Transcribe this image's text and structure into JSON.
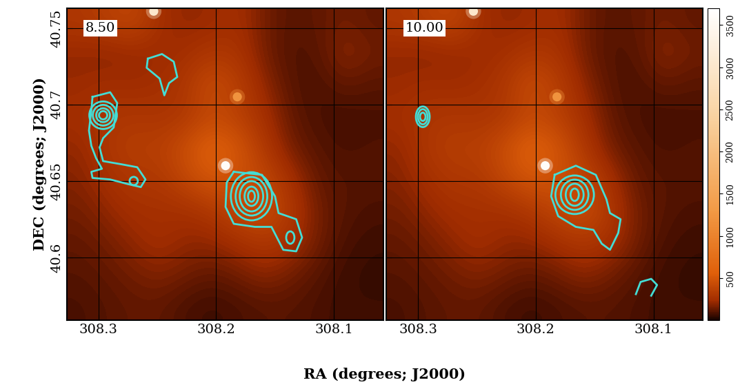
{
  "chart_data": {
    "type": "contour",
    "xlabel": "RA (degrees; J2000)",
    "ylabel": "DEC (degrees; J2000)",
    "xlim": [
      308.327,
      308.058
    ],
    "ylim": [
      40.559,
      40.763
    ],
    "xticks": [
      308.3,
      308.2,
      308.1
    ],
    "yticks": [
      40.6,
      40.65,
      40.7,
      40.75
    ],
    "grid": true,
    "color": "#44ddd5",
    "image": {
      "cells": [
        [
          300,
          350,
          400,
          250,
          200,
          220,
          250,
          150,
          100,
          120,
          150,
          120
        ],
        [
          200,
          180,
          200,
          220,
          250,
          300,
          280,
          150,
          90,
          100,
          200,
          150
        ],
        [
          220,
          250,
          230,
          250,
          300,
          450,
          350,
          200,
          100,
          80,
          120,
          100
        ],
        [
          250,
          280,
          300,
          280,
          300,
          400,
          350,
          250,
          120,
          80,
          70,
          80
        ],
        [
          200,
          300,
          350,
          350,
          450,
          600,
          500,
          300,
          150,
          100,
          80,
          90
        ],
        [
          180,
          250,
          300,
          300,
          400,
          500,
          450,
          400,
          250,
          120,
          100,
          100
        ],
        [
          150,
          200,
          250,
          250,
          250,
          300,
          400,
          450,
          300,
          150,
          100,
          80
        ],
        [
          120,
          150,
          200,
          250,
          200,
          200,
          250,
          300,
          250,
          150,
          80,
          60
        ],
        [
          100,
          120,
          150,
          180,
          150,
          120,
          150,
          200,
          150,
          100,
          60,
          50
        ],
        [
          80,
          100,
          120,
          120,
          80,
          60,
          80,
          100,
          100,
          80,
          60,
          60
        ]
      ],
      "point_sources": [
        {
          "ra": 308.192,
          "dec": 40.66,
          "value": 3600
        },
        {
          "ra": 308.253,
          "dec": 40.761,
          "value": 3000
        },
        {
          "ra": 308.182,
          "dec": 40.705,
          "value": 1200
        }
      ]
    },
    "colorbar": {
      "range": [
        0,
        3700
      ],
      "ticks": [
        500,
        1000,
        1500,
        2000,
        2500,
        3000,
        3500
      ]
    },
    "panels": [
      {
        "label": "8.50",
        "tick_labels": true,
        "polylines": [
          [
            [
              308.258,
              40.73
            ],
            [
              308.246,
              40.733
            ],
            [
              308.236,
              40.728
            ],
            [
              308.233,
              40.718
            ],
            [
              308.24,
              40.714
            ],
            [
              308.244,
              40.706
            ],
            [
              308.248,
              40.717
            ],
            [
              308.259,
              40.724
            ],
            [
              308.258,
              40.73
            ]
          ],
          [
            [
              308.305,
              40.705
            ],
            [
              308.29,
              40.708
            ],
            [
              308.284,
              40.701
            ],
            [
              308.287,
              40.685
            ],
            [
              308.296,
              40.678
            ],
            [
              308.299,
              40.672
            ],
            [
              308.296,
              40.663
            ],
            [
              308.281,
              40.661
            ],
            [
              308.267,
              40.659
            ],
            [
              308.26,
              40.651
            ],
            [
              308.264,
              40.646
            ],
            [
              308.275,
              40.648
            ],
            [
              308.29,
              40.651
            ],
            [
              308.305,
              40.652
            ],
            [
              308.306,
              40.656
            ],
            [
              308.297,
              40.658
            ],
            [
              308.302,
              40.665
            ],
            [
              308.306,
              40.673
            ],
            [
              308.308,
              40.683
            ],
            [
              308.306,
              40.696
            ],
            [
              308.305,
              40.705
            ]
          ],
          [
            [
              308.185,
              40.656
            ],
            [
              308.161,
              40.654
            ],
            [
              308.15,
              40.64
            ],
            [
              308.147,
              40.629
            ],
            [
              308.132,
              40.625
            ],
            [
              308.127,
              40.613
            ],
            [
              308.132,
              40.604
            ],
            [
              308.143,
              40.605
            ],
            [
              308.153,
              40.62
            ],
            [
              308.167,
              40.62
            ],
            [
              308.185,
              40.622
            ],
            [
              308.192,
              40.633
            ],
            [
              308.191,
              40.649
            ],
            [
              308.185,
              40.656
            ]
          ]
        ],
        "ellipses": [
          {
            "ra": 308.296,
            "dec": 40.693,
            "width": 0.0234,
            "height": 0.018
          },
          {
            "ra": 308.296,
            "dec": 40.693,
            "width": 0.0175,
            "height": 0.0135
          },
          {
            "ra": 308.296,
            "dec": 40.693,
            "width": 0.0117,
            "height": 0.009
          },
          {
            "ra": 308.296,
            "dec": 40.693,
            "width": 0.007,
            "height": 0.0054
          },
          {
            "ra": 308.27,
            "dec": 40.65,
            "width": 0.007,
            "height": 0.0054
          },
          {
            "ra": 308.17,
            "dec": 40.64,
            "width": 0.035,
            "height": 0.0315
          },
          {
            "ra": 308.17,
            "dec": 40.64,
            "width": 0.0269,
            "height": 0.0252
          },
          {
            "ra": 308.17,
            "dec": 40.64,
            "width": 0.0199,
            "height": 0.0198
          },
          {
            "ra": 308.17,
            "dec": 40.64,
            "width": 0.0117,
            "height": 0.0126
          },
          {
            "ra": 308.17,
            "dec": 40.64,
            "width": 0.0058,
            "height": 0.0072
          },
          {
            "ra": 308.137,
            "dec": 40.613,
            "width": 0.007,
            "height": 0.0081
          }
        ]
      },
      {
        "label": "10.00",
        "tick_labels": "x",
        "polylines": [
          [
            [
              308.184,
              40.654
            ],
            [
              308.166,
              40.66
            ],
            [
              308.149,
              40.654
            ],
            [
              308.14,
              40.638
            ],
            [
              308.137,
              40.629
            ],
            [
              308.128,
              40.625
            ],
            [
              308.13,
              40.616
            ],
            [
              308.137,
              40.605
            ],
            [
              308.144,
              40.609
            ],
            [
              308.151,
              40.618
            ],
            [
              308.166,
              40.62
            ],
            [
              308.181,
              40.627
            ],
            [
              308.187,
              40.64
            ],
            [
              308.184,
              40.654
            ]
          ],
          [
            [
              308.115,
              40.576
            ],
            [
              308.111,
              40.584
            ],
            [
              308.102,
              40.586
            ],
            [
              308.097,
              40.582
            ],
            [
              308.102,
              40.575
            ]
          ]
        ],
        "ellipses": [
          {
            "ra": 308.296,
            "dec": 40.692,
            "width": 0.0117,
            "height": 0.0135
          },
          {
            "ra": 308.296,
            "dec": 40.692,
            "width": 0.0082,
            "height": 0.0099
          },
          {
            "ra": 308.296,
            "dec": 40.692,
            "width": 0.0047,
            "height": 0.0054
          },
          {
            "ra": 308.167,
            "dec": 40.641,
            "width": 0.0327,
            "height": 0.0252
          },
          {
            "ra": 308.167,
            "dec": 40.641,
            "width": 0.0234,
            "height": 0.0198
          },
          {
            "ra": 308.167,
            "dec": 40.641,
            "width": 0.0152,
            "height": 0.0144
          },
          {
            "ra": 308.167,
            "dec": 40.641,
            "width": 0.007,
            "height": 0.0081
          }
        ]
      }
    ]
  }
}
